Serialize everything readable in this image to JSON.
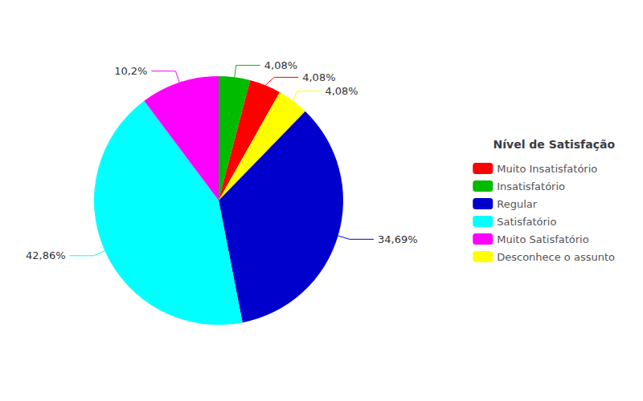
{
  "chart_data": {
    "type": "pie",
    "categories": [
      "Insatisfatório",
      "Muito Insatisfatório",
      "Desconhece o assunto",
      "Regular",
      "Satisfatório",
      "Muito Satisfatório"
    ],
    "values": [
      4.08,
      4.08,
      4.08,
      34.69,
      42.86,
      10.2
    ],
    "value_labels": [
      "4,08%",
      "4,08%",
      "4,08%",
      "34,69%",
      "42,86%",
      "10,2%"
    ],
    "colors": [
      "#00bb00",
      "#ff0000",
      "#ffff00",
      "#0000cc",
      "#00ffff",
      "#ff00ff"
    ],
    "data_labels": true,
    "legend": "right",
    "legend_title": "Nível de Satisfação",
    "legend_order": [
      "Muito Insatisfatório",
      "Insatisfatório",
      "Regular",
      "Satisfatório",
      "Muito Satisfatório",
      "Desconhece o assunto"
    ]
  }
}
